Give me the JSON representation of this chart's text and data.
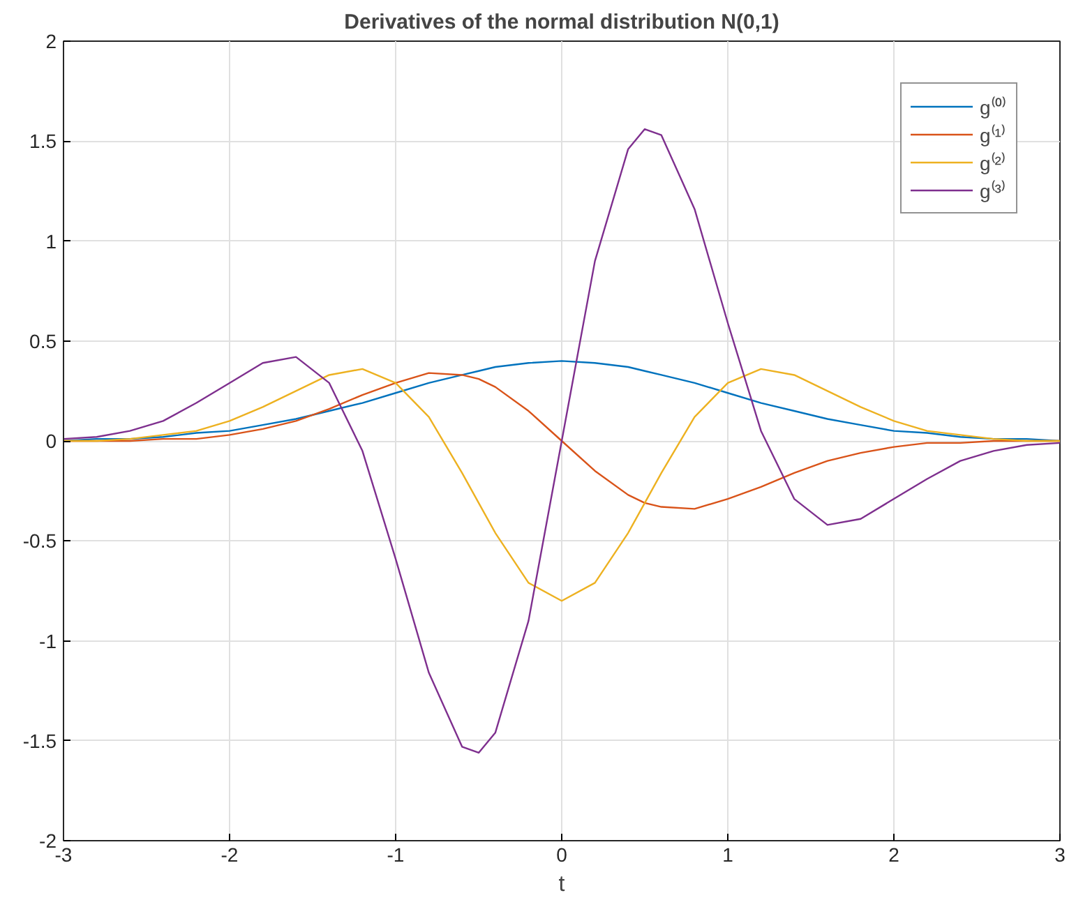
{
  "chart_data": {
    "type": "line",
    "title": "Derivatives of the normal distribution N(0,1)",
    "xlabel": "t",
    "x": [
      -3,
      -2.8,
      -2.6,
      -2.4,
      -2.2,
      -2,
      -1.8,
      -1.6,
      -1.4,
      -1.2,
      -1,
      -0.8,
      -0.6,
      -0.5,
      -0.4,
      -0.2,
      0,
      0.2,
      0.4,
      0.5,
      0.6,
      0.8,
      1,
      1.2,
      1.4,
      1.6,
      1.8,
      2,
      2.2,
      2.4,
      2.6,
      2.8,
      3
    ],
    "series": [
      {
        "name": "g⁽⁰⁾",
        "color": "#0072bd",
        "values": [
          0,
          0.01,
          0.01,
          0.02,
          0.04,
          0.05,
          0.08,
          0.11,
          0.15,
          0.19,
          0.24,
          0.29,
          0.33,
          0.35,
          0.37,
          0.39,
          0.4,
          0.39,
          0.37,
          0.35,
          0.33,
          0.29,
          0.24,
          0.19,
          0.15,
          0.11,
          0.08,
          0.05,
          0.04,
          0.02,
          0.01,
          0.01,
          0
        ]
      },
      {
        "name": "g⁽¹⁾",
        "color": "#d95319",
        "values": [
          0,
          0,
          0,
          0.01,
          0.01,
          0.03,
          0.06,
          0.1,
          0.16,
          0.23,
          0.29,
          0.34,
          0.33,
          0.31,
          0.27,
          0.15,
          0,
          -0.15,
          -0.27,
          -0.31,
          -0.33,
          -0.34,
          -0.29,
          -0.23,
          -0.16,
          -0.1,
          -0.06,
          -0.03,
          -0.01,
          -0.01,
          0,
          0,
          0
        ]
      },
      {
        "name": "g⁽²⁾",
        "color": "#edb120",
        "values": [
          0,
          0,
          0.01,
          0.03,
          0.05,
          0.1,
          0.17,
          0.25,
          0.33,
          0.36,
          0.29,
          0.12,
          -0.16,
          -0.31,
          -0.46,
          -0.71,
          -0.8,
          -0.71,
          -0.46,
          -0.31,
          -0.16,
          0.12,
          0.29,
          0.36,
          0.33,
          0.25,
          0.17,
          0.1,
          0.05,
          0.03,
          0.01,
          0,
          0
        ]
      },
      {
        "name": "g⁽³⁾",
        "color": "#7e2f8e",
        "values": [
          0.01,
          0.02,
          0.05,
          0.1,
          0.19,
          0.29,
          0.39,
          0.42,
          0.29,
          -0.05,
          -0.59,
          -1.16,
          -1.53,
          -1.56,
          -1.46,
          -0.9,
          0,
          0.9,
          1.46,
          1.56,
          1.53,
          1.16,
          0.59,
          0.05,
          -0.29,
          -0.42,
          -0.39,
          -0.29,
          -0.19,
          -0.1,
          -0.05,
          -0.02,
          -0.01
        ]
      }
    ],
    "xlim": [
      -3,
      3
    ],
    "ylim": [
      -2,
      2
    ],
    "xticks": [
      -3,
      -2,
      -1,
      0,
      1,
      2,
      3
    ],
    "yticks": [
      -2,
      -1.5,
      -1,
      -0.5,
      0,
      0.5,
      1,
      1.5,
      2
    ],
    "grid": true,
    "legend": "top right",
    "line_style": "solid",
    "marker": "none"
  }
}
